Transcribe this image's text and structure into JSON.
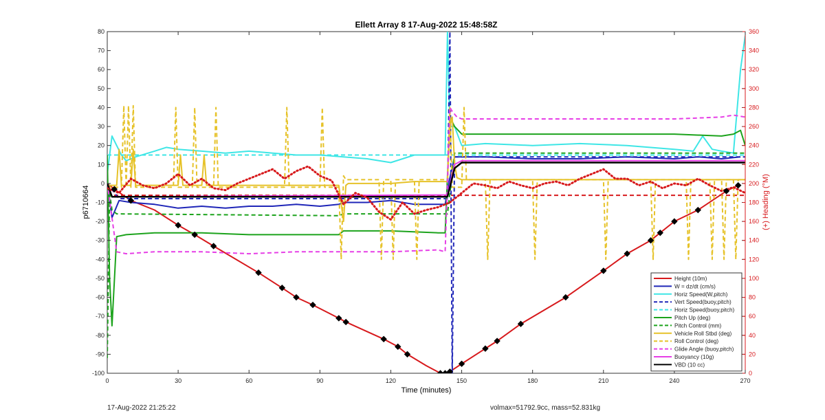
{
  "footer": {
    "timestamp": "17-Aug-2022 21:25:22",
    "volmax_mass": "volmax=51792.9cc, mass=52.831kg"
  },
  "chart_data": {
    "type": "line",
    "title": "Ellett Array 8 17-Aug-2022 15:48:58Z",
    "xlabel": "Time (minutes)",
    "ylabel_left": "p6710664",
    "ylabel_right": "(+) Heading (°M)",
    "xlim": [
      0,
      270
    ],
    "ylim_left": [
      -100,
      80
    ],
    "ylim_right": [
      0,
      360
    ],
    "xticks": [
      0,
      30,
      60,
      90,
      120,
      150,
      180,
      210,
      240,
      270
    ],
    "yticks_left": [
      -100,
      -90,
      -80,
      -70,
      -60,
      -50,
      -40,
      -30,
      -20,
      -10,
      0,
      10,
      20,
      30,
      40,
      50,
      60,
      70,
      80
    ],
    "yticks_right": [
      0,
      20,
      40,
      60,
      80,
      100,
      120,
      140,
      160,
      180,
      200,
      220,
      240,
      260,
      280,
      300,
      320,
      340,
      360
    ],
    "grid": false,
    "legend_position": "bottom-right",
    "colors": {
      "red": "#d7191c",
      "blue": "#1f26b8",
      "cyan": "#3ee6e6",
      "green": "#1ca31c",
      "gold": "#e6c229",
      "magenta": "#e63ee6",
      "purple": "#a020f0",
      "black": "#000000"
    },
    "series": [
      {
        "name": "Height (10m)",
        "color": "#d7191c",
        "style": "solid",
        "width": 2,
        "x": [
          0,
          3,
          10,
          20,
          30,
          37,
          45,
          64,
          74,
          80,
          87,
          98,
          101,
          117,
          123,
          127,
          135,
          141,
          144,
          150,
          160,
          165,
          175,
          194,
          210,
          220,
          230,
          240,
          250,
          262,
          267
        ],
        "y": [
          0,
          -3,
          -9,
          -14,
          -22,
          -27,
          -33,
          -47,
          -55,
          -60,
          -64,
          -71,
          -73,
          -82,
          -86,
          -90,
          -96,
          -100,
          -100,
          -95,
          -87,
          -83,
          -74,
          -60,
          -46,
          -37,
          -30,
          -20,
          -14,
          -4,
          -1
        ]
      },
      {
        "name": "W = dz/dt (cm/s)",
        "color": "#1f26b8",
        "style": "solid",
        "width": 2,
        "x": [
          0,
          2,
          5,
          10,
          20,
          30,
          40,
          50,
          60,
          70,
          80,
          90,
          98,
          100,
          110,
          120,
          130,
          140,
          143,
          145,
          147,
          150,
          160,
          180,
          200,
          220,
          240,
          250,
          260,
          268
        ],
        "y": [
          0,
          -18,
          -9,
          -10,
          -11,
          -13,
          -12,
          -13,
          -12,
          -12,
          -11,
          -12,
          -11,
          -10,
          -10,
          -9,
          -11,
          -11,
          -11,
          3,
          14,
          14,
          14,
          13,
          13,
          14,
          13,
          14,
          13,
          14
        ]
      },
      {
        "name": "Horiz Speed(W,pitch)",
        "color": "#3ee6e6",
        "style": "solid",
        "width": 2,
        "x": [
          0,
          2,
          4,
          6,
          8,
          12,
          20,
          25,
          30,
          40,
          50,
          60,
          70,
          80,
          90,
          100,
          110,
          120,
          130,
          140,
          143,
          144,
          145,
          147,
          150,
          160,
          180,
          200,
          220,
          240,
          248,
          252,
          256,
          260,
          265,
          268,
          270
        ],
        "y": [
          5,
          25,
          20,
          15,
          12,
          14,
          17,
          19,
          18,
          17,
          16,
          17,
          16,
          15,
          15,
          14,
          13,
          11,
          15,
          15,
          15,
          80,
          30,
          30,
          20,
          21,
          20,
          21,
          20,
          18,
          17,
          25,
          18,
          17,
          16,
          60,
          78
        ]
      },
      {
        "name": "Vert Speed(buoy,pitch)",
        "color": "#1f26b8",
        "style": "dash",
        "width": 2,
        "x": [
          0,
          5,
          20,
          40,
          60,
          80,
          100,
          120,
          140,
          144,
          145,
          146,
          147,
          150,
          270
        ],
        "y": [
          0,
          -8,
          -8,
          -8,
          -8,
          -8,
          -8,
          -8,
          -8,
          -8,
          80,
          -100,
          14,
          14,
          14
        ]
      },
      {
        "name": "Horiz Speed(buoy,pitch)",
        "color": "#3ee6e6",
        "style": "dash",
        "width": 2,
        "x": [
          0,
          144,
          270
        ],
        "y": [
          15,
          15,
          15
        ]
      },
      {
        "name": "Pitch Up (deg)",
        "color": "#1ca31c",
        "style": "solid",
        "width": 2,
        "x": [
          0,
          1,
          2,
          4,
          8,
          20,
          40,
          60,
          80,
          98,
          100,
          120,
          140,
          143,
          145,
          147,
          150,
          180,
          210,
          240,
          260,
          265,
          268,
          270
        ],
        "y": [
          15,
          -50,
          -75,
          -28,
          -27,
          -26,
          -26,
          -27,
          -27,
          -27,
          -25,
          -25,
          -26,
          -26,
          35,
          30,
          26,
          26,
          26,
          26,
          25,
          26,
          28,
          20
        ]
      },
      {
        "name": "Pitch Control (mm)",
        "color": "#1ca31c",
        "style": "dash",
        "width": 2,
        "x": [
          0,
          1,
          2,
          4,
          98,
          100,
          144,
          147,
          270
        ],
        "y": [
          -92,
          -5,
          -14,
          -16,
          -17,
          -16,
          -16,
          16,
          16
        ]
      },
      {
        "name": "Vehicle Roll Stbd (deg)",
        "color": "#e6c229",
        "style": "solid",
        "width": 2,
        "x": [
          0,
          4,
          5,
          6,
          10,
          11,
          12,
          30,
          31,
          32,
          40,
          41,
          42,
          60,
          80,
          98,
          100,
          101,
          102,
          120,
          130,
          144,
          145,
          146,
          147,
          148,
          150,
          180,
          210,
          240,
          270
        ],
        "y": [
          -1,
          -1,
          18,
          -1,
          -1,
          18,
          -1,
          -1,
          15,
          -1,
          -1,
          15,
          -1,
          -1,
          -1,
          -1,
          -20,
          -1,
          0,
          0,
          1,
          1,
          30,
          35,
          10,
          3,
          2,
          2,
          2,
          2,
          2
        ]
      },
      {
        "name": "Roll Control (deg)",
        "color": "#e6c229",
        "style": "dash",
        "width": 2,
        "x": [
          0,
          6,
          7,
          8,
          9,
          10,
          11,
          12,
          28,
          29,
          30,
          36,
          37,
          38,
          45,
          46,
          47,
          60,
          75,
          76,
          77,
          90,
          91,
          92,
          98,
          99,
          100,
          101,
          115,
          116,
          117,
          120,
          121,
          122,
          130,
          131,
          132,
          144,
          145,
          146,
          150,
          151,
          152,
          160,
          161,
          162,
          180,
          181,
          182,
          200,
          210,
          211,
          212,
          220,
          230,
          231,
          232,
          240,
          245,
          246,
          247,
          255,
          256,
          257,
          260,
          261,
          262,
          265,
          266,
          267,
          270
        ],
        "y": [
          -2,
          -2,
          41,
          -2,
          41,
          -2,
          41,
          -2,
          -2,
          40,
          -2,
          -2,
          40,
          -2,
          -2,
          40,
          -2,
          -2,
          -2,
          40,
          -2,
          -2,
          40,
          -2,
          -2,
          -40,
          4,
          2,
          2,
          -40,
          2,
          2,
          -40,
          2,
          2,
          -40,
          2,
          2,
          40,
          -2,
          -2,
          40,
          2,
          2,
          -40,
          2,
          2,
          -40,
          2,
          2,
          2,
          -40,
          2,
          2,
          2,
          -40,
          2,
          2,
          2,
          -40,
          2,
          2,
          -40,
          2,
          2,
          -40,
          2,
          2,
          -40,
          2,
          2
        ]
      },
      {
        "name": "Glide Angle (buoy,pitch)",
        "color": "#e63ee6",
        "style": "dash",
        "width": 2,
        "x": [
          0,
          4,
          8,
          20,
          40,
          60,
          80,
          100,
          120,
          140,
          143,
          145,
          146,
          148,
          150,
          180,
          210,
          240,
          260,
          265,
          270
        ],
        "y": [
          0,
          -36,
          -37,
          -36,
          -36,
          -37,
          -36,
          -36,
          -36,
          -35,
          -36,
          40,
          38,
          35,
          34,
          34,
          34,
          34,
          35,
          36,
          35
        ]
      },
      {
        "name": "Buoyancy (10g)",
        "color": "#e63ee6",
        "style": "solid",
        "width": 2,
        "x": [
          0,
          2,
          4,
          144,
          147,
          150,
          270
        ],
        "y": [
          0,
          -7,
          -7,
          -6,
          10,
          12,
          12
        ]
      },
      {
        "name": "VBD (10 cc)",
        "color": "#000000",
        "style": "solid",
        "width": 2.5,
        "x": [
          0,
          2,
          4,
          10,
          144,
          147,
          150,
          270
        ],
        "y": [
          0,
          -7,
          -7,
          -7,
          -7,
          8,
          11,
          11
        ]
      }
    ],
    "heading_series": {
      "name": "Heading",
      "axis": "right",
      "color": "#d7191c",
      "style": "dotted",
      "width": 3,
      "x": [
        0,
        5,
        10,
        15,
        20,
        25,
        30,
        35,
        40,
        45,
        50,
        55,
        60,
        65,
        70,
        75,
        80,
        85,
        90,
        95,
        100,
        105,
        110,
        115,
        120,
        125,
        130,
        135,
        140,
        145,
        150,
        155,
        160,
        165,
        170,
        175,
        180,
        185,
        190,
        195,
        200,
        205,
        210,
        215,
        220,
        225,
        230,
        235,
        240,
        245,
        250,
        255,
        260,
        265,
        270
      ],
      "y": [
        195,
        190,
        205,
        198,
        195,
        200,
        210,
        198,
        205,
        195,
        193,
        200,
        205,
        210,
        215,
        205,
        213,
        218,
        208,
        203,
        178,
        190,
        185,
        170,
        162,
        180,
        168,
        172,
        175,
        180,
        190,
        200,
        198,
        195,
        202,
        198,
        195,
        200,
        202,
        198,
        205,
        210,
        215,
        205,
        205,
        198,
        202,
        195,
        200,
        198,
        205,
        198,
        192,
        196,
        190
      ]
    },
    "heading_reference": {
      "name": "",
      "axis": "right",
      "color": "#d7191c",
      "style": "dash",
      "y": 187.5
    },
    "markers": {
      "style": "black-diamond",
      "x": [
        3,
        10,
        30,
        37,
        45,
        64,
        74,
        80,
        87,
        98,
        101,
        117,
        123,
        127,
        141,
        143,
        145,
        150,
        160,
        165,
        175,
        194,
        210,
        220,
        230,
        234,
        240,
        250,
        262,
        267
      ]
    }
  }
}
